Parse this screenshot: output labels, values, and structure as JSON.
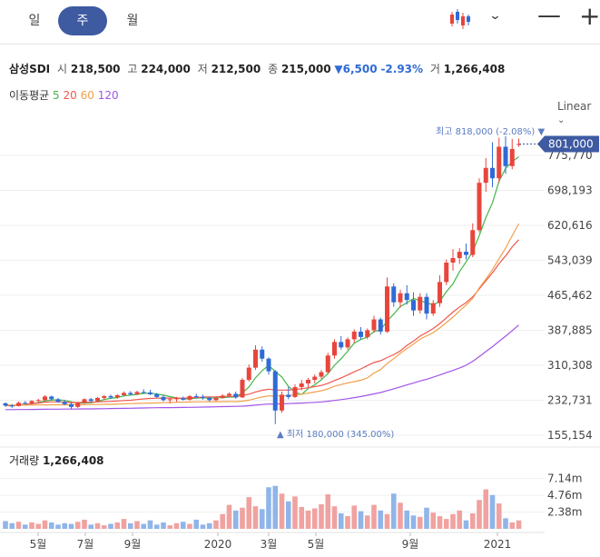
{
  "tabs": [
    {
      "label": "일",
      "active": false
    },
    {
      "label": "주",
      "active": true
    },
    {
      "label": "월",
      "active": false
    }
  ],
  "toolbar": {
    "chart_type_icon": "candlestick-icon",
    "dropdown_icon": "chevron-down-icon",
    "zoom_out": "—",
    "zoom_in": "+"
  },
  "stock": {
    "name": "삼성SDI",
    "open_label": "시",
    "open": "218,500",
    "high_label": "고",
    "high": "224,000",
    "low_label": "저",
    "low": "212,500",
    "close_label": "종",
    "close": "215,000",
    "change": "▼6,500",
    "change_pct": "-2.93%",
    "volume_label": "거",
    "volume": "1,266,408"
  },
  "moving_average": {
    "label": "이동평균",
    "periods": [
      "5",
      "20",
      "60",
      "120"
    ],
    "colors": [
      "#43b649",
      "#f0574e",
      "#f2a04b",
      "#a254e8"
    ]
  },
  "scale_label": "Linear",
  "volume_title": "거래량",
  "volume_value": "1,266,408",
  "price_axis": [
    "775,770",
    "698,193",
    "620,616",
    "543,039",
    "465,462",
    "387,885",
    "310,308",
    "232,731",
    "155,154"
  ],
  "volume_axis": [
    "7.14m",
    "4.76m",
    "2.38m"
  ],
  "current_price": "801,000",
  "high_marker": "최고 818,000 (-2.08%) ▼",
  "low_marker": "▲ 최저 180,000 (345.00%)",
  "time_axis": [
    "5월",
    "7월",
    "9월",
    "2020",
    "3월",
    "5월",
    "9월",
    "2021"
  ],
  "colors": {
    "up": "#e8453c",
    "down": "#2f6bd6",
    "accent": "#3e5aa1"
  },
  "chart_data": {
    "type": "candlestick",
    "y_range": [
      155154,
      850000
    ],
    "candles": [
      [
        226000,
        228000,
        218000,
        221000
      ],
      [
        221000,
        224000,
        216000,
        220000
      ],
      [
        220000,
        230000,
        219000,
        227000
      ],
      [
        227000,
        231000,
        224000,
        226000
      ],
      [
        226000,
        233000,
        223000,
        231000
      ],
      [
        231000,
        236000,
        228000,
        233000
      ],
      [
        233000,
        244000,
        230000,
        241000
      ],
      [
        241000,
        243000,
        232000,
        235000
      ],
      [
        235000,
        238000,
        227000,
        229000
      ],
      [
        229000,
        233000,
        222000,
        224000
      ],
      [
        224000,
        228000,
        213000,
        218000
      ],
      [
        218000,
        229000,
        216000,
        227000
      ],
      [
        227000,
        237000,
        225000,
        235000
      ],
      [
        235000,
        238000,
        229000,
        231000
      ],
      [
        231000,
        240000,
        229000,
        238000
      ],
      [
        238000,
        244000,
        234000,
        242000
      ],
      [
        242000,
        245000,
        236000,
        239000
      ],
      [
        239000,
        246000,
        236000,
        244000
      ],
      [
        244000,
        252000,
        241000,
        249000
      ],
      [
        249000,
        253000,
        243000,
        246000
      ],
      [
        246000,
        254000,
        244000,
        251000
      ],
      [
        251000,
        257000,
        247000,
        250000
      ],
      [
        250000,
        256000,
        244000,
        246000
      ],
      [
        246000,
        249000,
        238000,
        240000
      ],
      [
        240000,
        243000,
        230000,
        233000
      ],
      [
        233000,
        238000,
        226000,
        235000
      ],
      [
        235000,
        240000,
        229000,
        237000
      ],
      [
        237000,
        241000,
        232000,
        234000
      ],
      [
        234000,
        244000,
        232000,
        242000
      ],
      [
        242000,
        247000,
        237000,
        240000
      ],
      [
        240000,
        245000,
        234000,
        238000
      ],
      [
        238000,
        241000,
        230000,
        233000
      ],
      [
        233000,
        240000,
        231000,
        238000
      ],
      [
        238000,
        246000,
        236000,
        243000
      ],
      [
        243000,
        250000,
        241000,
        247000
      ],
      [
        247000,
        252000,
        236000,
        239000
      ],
      [
        239000,
        282000,
        238000,
        278000
      ],
      [
        278000,
        312000,
        274000,
        305000
      ],
      [
        305000,
        355000,
        300000,
        345000
      ],
      [
        345000,
        352000,
        318000,
        325000
      ],
      [
        325000,
        328000,
        290000,
        297000
      ],
      [
        297000,
        300000,
        180000,
        210000
      ],
      [
        210000,
        252000,
        205000,
        245000
      ],
      [
        245000,
        262000,
        235000,
        240000
      ],
      [
        240000,
        268000,
        238000,
        262000
      ],
      [
        262000,
        278000,
        255000,
        270000
      ],
      [
        270000,
        282000,
        262000,
        278000
      ],
      [
        278000,
        290000,
        270000,
        285000
      ],
      [
        285000,
        300000,
        280000,
        295000
      ],
      [
        295000,
        338000,
        292000,
        332000
      ],
      [
        332000,
        368000,
        325000,
        362000
      ],
      [
        362000,
        375000,
        345000,
        350000
      ],
      [
        350000,
        372000,
        345000,
        368000
      ],
      [
        368000,
        390000,
        360000,
        385000
      ],
      [
        385000,
        395000,
        368000,
        373000
      ],
      [
        373000,
        392000,
        368000,
        388000
      ],
      [
        388000,
        420000,
        382000,
        412000
      ],
      [
        412000,
        416000,
        378000,
        385000
      ],
      [
        385000,
        505000,
        382000,
        485000
      ],
      [
        485000,
        492000,
        440000,
        450000
      ],
      [
        450000,
        478000,
        438000,
        470000
      ],
      [
        470000,
        488000,
        445000,
        455000
      ],
      [
        455000,
        472000,
        420000,
        432000
      ],
      [
        432000,
        470000,
        425000,
        462000
      ],
      [
        462000,
        470000,
        412000,
        425000
      ],
      [
        425000,
        455000,
        420000,
        448000
      ],
      [
        448000,
        510000,
        440000,
        495000
      ],
      [
        495000,
        545000,
        488000,
        538000
      ],
      [
        538000,
        568000,
        520000,
        548000
      ],
      [
        548000,
        570000,
        535000,
        562000
      ],
      [
        562000,
        580000,
        545000,
        555000
      ],
      [
        555000,
        625000,
        550000,
        610000
      ],
      [
        610000,
        725000,
        605000,
        715000
      ],
      [
        715000,
        770000,
        695000,
        748000
      ],
      [
        748000,
        805000,
        705000,
        725000
      ],
      [
        725000,
        815000,
        715000,
        795000
      ],
      [
        795000,
        818000,
        735000,
        752000
      ],
      [
        752000,
        812000,
        745000,
        790000
      ],
      [
        801000,
        813000,
        795000,
        801000
      ]
    ],
    "volumes": [
      1.1,
      0.8,
      1.0,
      0.6,
      0.9,
      0.7,
      1.2,
      0.9,
      0.6,
      0.8,
      0.7,
      1.0,
      1.3,
      0.6,
      0.8,
      0.5,
      0.7,
      0.9,
      1.4,
      0.8,
      1.1,
      0.7,
      1.2,
      0.6,
      0.9,
      0.5,
      0.8,
      1.0,
      0.7,
      1.3,
      0.6,
      0.8,
      1.2,
      2.1,
      3.4,
      2.6,
      3.0,
      4.5,
      3.2,
      2.8,
      5.9,
      6.1,
      5.0,
      3.9,
      4.6,
      3.1,
      2.6,
      2.9,
      3.5,
      4.9,
      3.2,
      2.2,
      1.8,
      3.3,
      2.5,
      1.9,
      3.4,
      2.6,
      2.1,
      5.0,
      3.7,
      2.6,
      1.9,
      1.7,
      3.0,
      2.3,
      1.8,
      1.4,
      2.1,
      2.6,
      1.2,
      2.2,
      4.1,
      5.6,
      4.8,
      3.6,
      1.5,
      0.9,
      1.2
    ]
  }
}
